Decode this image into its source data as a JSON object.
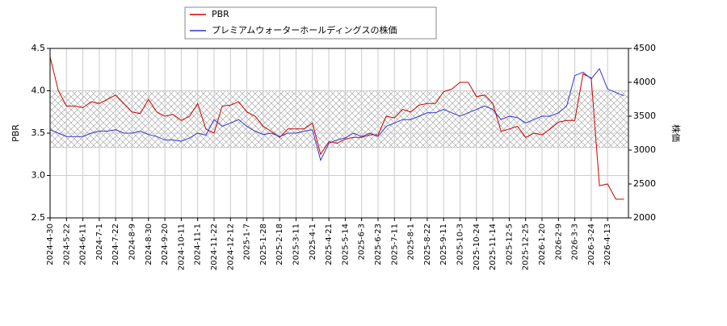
{
  "chart_data": {
    "type": "line",
    "categories": [
      "2024-4-30",
      null,
      "2024-5-22",
      null,
      "2024-6-11",
      null,
      "2024-7-1",
      null,
      "2024-7-22",
      null,
      "2024-8-9",
      null,
      "2024-8-30",
      null,
      "2024-9-20",
      null,
      "2024-10-11",
      null,
      "2024-11-1",
      null,
      "2024-11-22",
      null,
      "2024-12-12",
      null,
      "2025-1-7",
      null,
      "2025-1-28",
      null,
      "2025-2-18",
      null,
      "2025-3-11",
      null,
      "2025-4-1",
      null,
      "2025-4-21",
      null,
      "2025-5-14",
      null,
      "2025-6-3",
      null,
      "2025-6-23",
      null,
      "2025-7-11",
      null,
      "2025-8-1",
      null,
      "2025-8-22",
      null,
      "2025-9-11",
      null,
      "2025-10-3",
      null,
      "2025-10-24",
      null,
      "2025-11-14",
      null,
      "2025-12-5",
      null,
      "2025-12-25",
      null,
      "2026-1-20",
      null,
      "2026-2-9",
      null,
      "2026-3-3",
      null,
      "2026-3-24",
      null,
      "2026-4-13",
      null,
      null
    ],
    "series": [
      {
        "name": "PBR",
        "color": "#cc0000",
        "axis": "y",
        "values": [
          4.4,
          4.0,
          3.82,
          3.82,
          3.8,
          3.87,
          3.85,
          3.9,
          3.95,
          3.85,
          3.75,
          3.73,
          3.9,
          3.75,
          3.7,
          3.72,
          3.65,
          3.7,
          3.85,
          3.55,
          3.5,
          3.82,
          3.83,
          3.87,
          3.75,
          3.7,
          3.58,
          3.52,
          3.45,
          3.55,
          3.55,
          3.55,
          3.62,
          3.25,
          3.4,
          3.38,
          3.43,
          3.45,
          3.45,
          3.48,
          3.48,
          3.7,
          3.68,
          3.78,
          3.75,
          3.83,
          3.85,
          3.85,
          3.99,
          4.02,
          4.1,
          4.1,
          3.93,
          3.95,
          3.85,
          3.52,
          3.55,
          3.58,
          3.45,
          3.5,
          3.48,
          3.55,
          3.63,
          3.65,
          3.65,
          4.2,
          4.15,
          2.88,
          2.9,
          2.72,
          2.72
        ]
      },
      {
        "name": "プレミアムウォーターホールディングスの株価",
        "color": "#3333cc",
        "axis": "y2",
        "values": [
          3300,
          3250,
          3200,
          3200,
          3200,
          3250,
          3280,
          3280,
          3300,
          3250,
          3250,
          3280,
          3230,
          3200,
          3150,
          3150,
          3130,
          3180,
          3250,
          3220,
          3450,
          3350,
          3400,
          3450,
          3350,
          3280,
          3230,
          3250,
          3200,
          3250,
          3250,
          3280,
          3300,
          2850,
          3100,
          3150,
          3180,
          3250,
          3200,
          3250,
          3200,
          3350,
          3400,
          3450,
          3450,
          3500,
          3550,
          3550,
          3600,
          3550,
          3500,
          3550,
          3600,
          3650,
          3600,
          3450,
          3500,
          3480,
          3400,
          3450,
          3500,
          3500,
          3550,
          3650,
          4100,
          4150,
          4050,
          4200,
          3900,
          3850,
          3800
        ]
      }
    ],
    "ylabel": "PBR",
    "y2label": "株価",
    "ylim": [
      2.5,
      4.5
    ],
    "yticks": [
      2.5,
      {
        "value": 3,
        "label": "3.0"
      },
      3.5,
      {
        "value": 4,
        "label": "4.0"
      },
      4.5
    ],
    "y2lim": [
      2000,
      4500
    ],
    "y2ticks": [
      2000,
      2500,
      3000,
      3500,
      4000,
      4500
    ],
    "band": [
      3.33,
      4.0
    ],
    "grid": true,
    "legend": "top"
  }
}
